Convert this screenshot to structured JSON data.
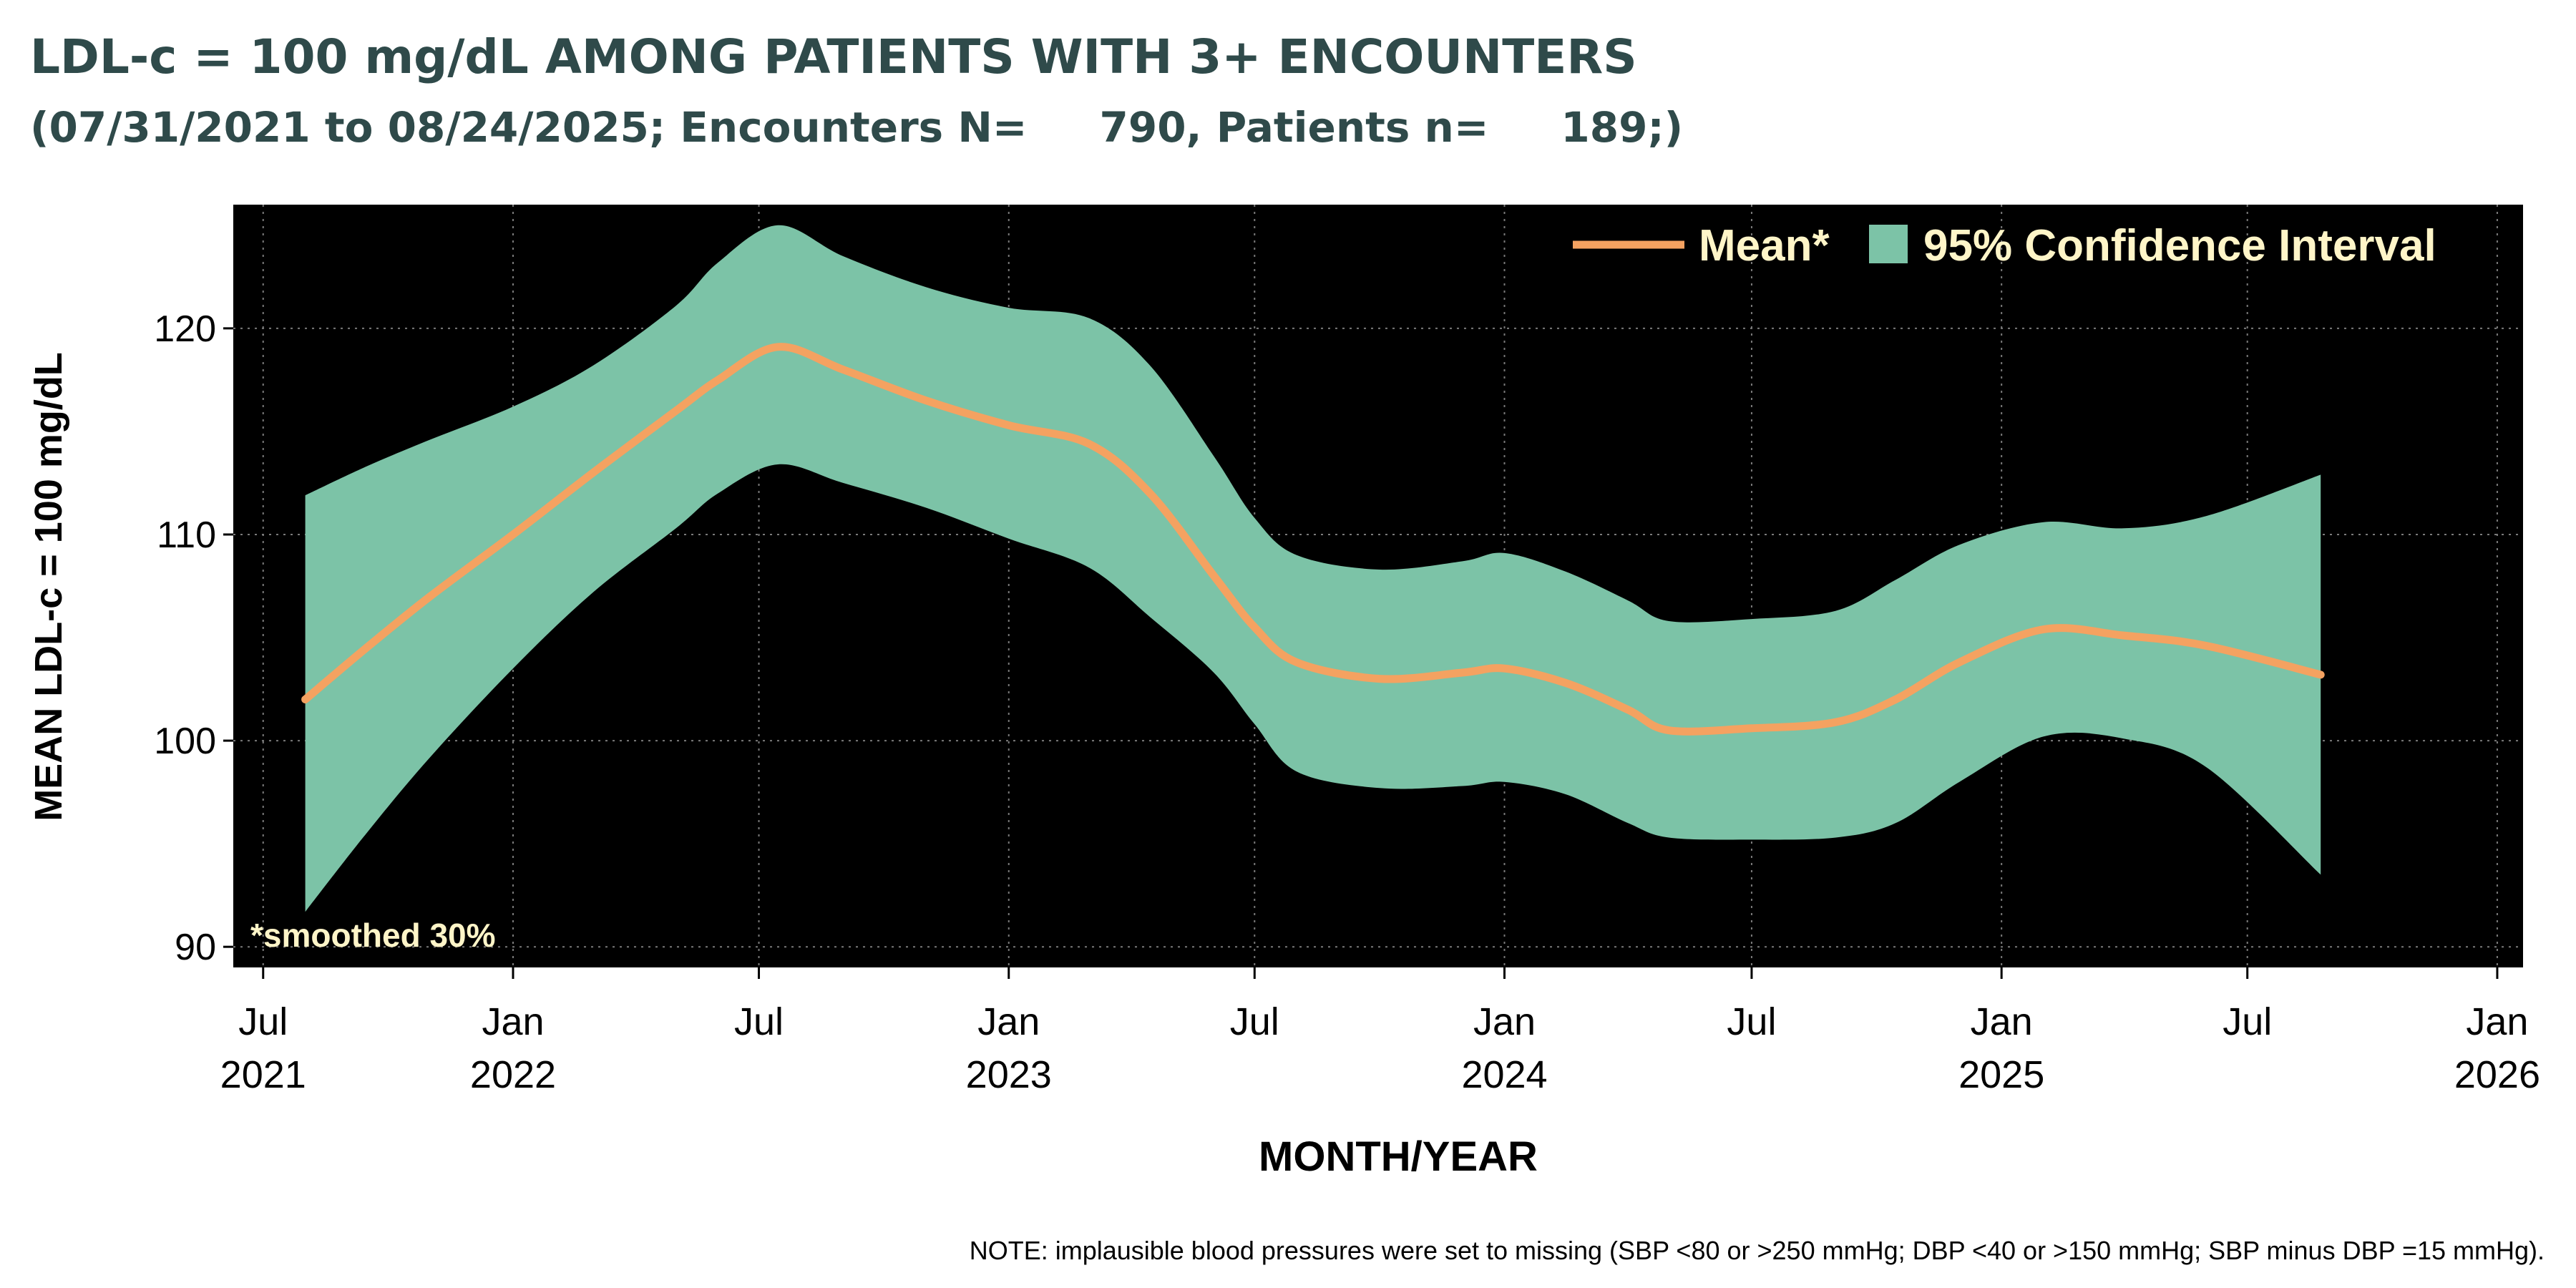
{
  "chart_data": {
    "type": "line",
    "title": "LDL-c = 100 mg/dL AMONG PATIENTS WITH 3+ ENCOUNTERS",
    "subtitle": "(07/31/2021 to 08/24/2025; Encounters N=     790, Patients n=     189;)",
    "xlabel": "MONTH/YEAR",
    "ylabel": "MEAN LDL-c = 100 mg/dL",
    "ylim": [
      89,
      126
    ],
    "xlim": [
      "2021-06-09",
      "2026-01-20"
    ],
    "y_ticks": [
      90,
      100,
      110,
      120
    ],
    "x_ticks": [
      {
        "date": "2021-07-01",
        "month": "Jul",
        "year": "2021"
      },
      {
        "date": "2022-01-01",
        "month": "Jan",
        "year": "2022"
      },
      {
        "date": "2022-07-01",
        "month": "Jul",
        "year": ""
      },
      {
        "date": "2023-01-01",
        "month": "Jan",
        "year": "2023"
      },
      {
        "date": "2023-07-01",
        "month": "Jul",
        "year": ""
      },
      {
        "date": "2024-01-01",
        "month": "Jan",
        "year": "2024"
      },
      {
        "date": "2024-07-01",
        "month": "Jul",
        "year": ""
      },
      {
        "date": "2025-01-01",
        "month": "Jan",
        "year": "2025"
      },
      {
        "date": "2025-07-01",
        "month": "Jul",
        "year": ""
      },
      {
        "date": "2026-01-01",
        "month": "Jan",
        "year": "2026"
      }
    ],
    "grid": true,
    "legend_position": "top-right",
    "legend": {
      "mean_label": "Mean*",
      "ci_label": "95% Confidence Interval"
    },
    "annotation": "*smoothed 30%",
    "note": "NOTE: implausible blood pressures were set to missing (SBP <80 or >250 mmHg; DBP <40 or >150 mmHg; SBP minus DBP =15 mmHg).",
    "colors": {
      "plot_background": "#000000",
      "mean_line": "#f4a261",
      "ci_band": "#7cc3a7",
      "title": "#2f4a4a",
      "legend_text": "#fff5c8",
      "grid": "#7a7a7a"
    },
    "series": [
      {
        "name": "Mean*",
        "points": [
          {
            "x": "2021-08-01",
            "y": 102.0
          },
          {
            "x": "2021-09-15",
            "y": 104.5
          },
          {
            "x": "2021-11-01",
            "y": 107.0
          },
          {
            "x": "2022-01-01",
            "y": 110.0
          },
          {
            "x": "2022-03-01",
            "y": 113.0
          },
          {
            "x": "2022-05-01",
            "y": 116.0
          },
          {
            "x": "2022-06-01",
            "y": 117.5
          },
          {
            "x": "2022-07-15",
            "y": 119.1
          },
          {
            "x": "2022-09-01",
            "y": 118.0
          },
          {
            "x": "2022-11-01",
            "y": 116.5
          },
          {
            "x": "2023-01-01",
            "y": 115.3
          },
          {
            "x": "2023-03-01",
            "y": 114.4
          },
          {
            "x": "2023-04-15",
            "y": 112.0
          },
          {
            "x": "2023-06-01",
            "y": 108.0
          },
          {
            "x": "2023-07-01",
            "y": 105.5
          },
          {
            "x": "2023-08-01",
            "y": 103.8
          },
          {
            "x": "2023-10-01",
            "y": 103.0
          },
          {
            "x": "2023-12-01",
            "y": 103.3
          },
          {
            "x": "2024-01-01",
            "y": 103.5
          },
          {
            "x": "2024-02-15",
            "y": 102.8
          },
          {
            "x": "2024-04-01",
            "y": 101.5
          },
          {
            "x": "2024-05-01",
            "y": 100.5
          },
          {
            "x": "2024-07-01",
            "y": 100.6
          },
          {
            "x": "2024-09-01",
            "y": 100.9
          },
          {
            "x": "2024-10-15",
            "y": 102.0
          },
          {
            "x": "2024-12-01",
            "y": 103.8
          },
          {
            "x": "2025-02-01",
            "y": 105.4
          },
          {
            "x": "2025-04-01",
            "y": 105.1
          },
          {
            "x": "2025-06-01",
            "y": 104.6
          },
          {
            "x": "2025-08-24",
            "y": 103.2
          }
        ]
      },
      {
        "name": "95% Confidence Interval",
        "points": [
          {
            "x": "2021-08-01",
            "lower": 91.7,
            "upper": 111.9
          },
          {
            "x": "2021-09-15",
            "lower": 95.5,
            "upper": 113.3
          },
          {
            "x": "2021-11-01",
            "lower": 99.2,
            "upper": 114.6
          },
          {
            "x": "2022-01-01",
            "lower": 103.5,
            "upper": 116.2
          },
          {
            "x": "2022-03-01",
            "lower": 107.2,
            "upper": 118.2
          },
          {
            "x": "2022-05-01",
            "lower": 110.3,
            "upper": 121.1
          },
          {
            "x": "2022-06-01",
            "lower": 112.0,
            "upper": 123.2
          },
          {
            "x": "2022-07-15",
            "lower": 113.4,
            "upper": 125.0
          },
          {
            "x": "2022-09-01",
            "lower": 112.5,
            "upper": 123.5
          },
          {
            "x": "2022-11-01",
            "lower": 111.3,
            "upper": 122.0
          },
          {
            "x": "2023-01-01",
            "lower": 109.8,
            "upper": 121.0
          },
          {
            "x": "2023-03-01",
            "lower": 108.4,
            "upper": 120.5
          },
          {
            "x": "2023-04-15",
            "lower": 106.0,
            "upper": 118.2
          },
          {
            "x": "2023-06-01",
            "lower": 103.3,
            "upper": 113.8
          },
          {
            "x": "2023-07-01",
            "lower": 100.8,
            "upper": 110.8
          },
          {
            "x": "2023-08-01",
            "lower": 98.5,
            "upper": 109.0
          },
          {
            "x": "2023-10-01",
            "lower": 97.7,
            "upper": 108.3
          },
          {
            "x": "2023-12-01",
            "lower": 97.8,
            "upper": 108.7
          },
          {
            "x": "2024-01-01",
            "lower": 98.0,
            "upper": 109.1
          },
          {
            "x": "2024-02-15",
            "lower": 97.4,
            "upper": 108.2
          },
          {
            "x": "2024-04-01",
            "lower": 96.0,
            "upper": 106.8
          },
          {
            "x": "2024-05-01",
            "lower": 95.3,
            "upper": 105.8
          },
          {
            "x": "2024-07-01",
            "lower": 95.2,
            "upper": 105.9
          },
          {
            "x": "2024-09-01",
            "lower": 95.3,
            "upper": 106.3
          },
          {
            "x": "2024-10-15",
            "lower": 96.0,
            "upper": 107.8
          },
          {
            "x": "2024-12-01",
            "lower": 98.0,
            "upper": 109.5
          },
          {
            "x": "2025-02-01",
            "lower": 100.2,
            "upper": 110.6
          },
          {
            "x": "2025-04-01",
            "lower": 100.1,
            "upper": 110.3
          },
          {
            "x": "2025-06-01",
            "lower": 98.7,
            "upper": 110.9
          },
          {
            "x": "2025-08-24",
            "lower": 93.5,
            "upper": 112.9
          }
        ]
      }
    ]
  }
}
